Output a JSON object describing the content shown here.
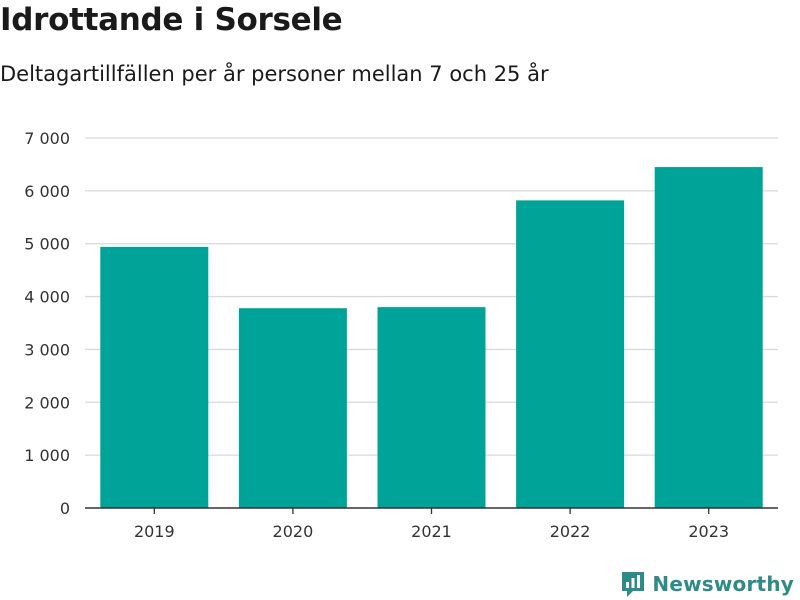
{
  "title": "Idrottande i Sorsele",
  "subtitle": "Deltagartillfällen per år personer mellan 7 och 25 år",
  "brand": "Newsworthy",
  "colors": {
    "bar": "#00a398",
    "grid": "#d9d9d9",
    "axis": "#333333",
    "brand": "#2e8b87"
  },
  "chart_data": {
    "type": "bar",
    "title": "",
    "xlabel": "",
    "ylabel": "",
    "categories": [
      "2019",
      "2020",
      "2021",
      "2022",
      "2023"
    ],
    "values": [
      4940,
      3780,
      3800,
      5820,
      6450
    ],
    "ylim": [
      0,
      7000
    ],
    "yticks": [
      0,
      1000,
      2000,
      3000,
      4000,
      5000,
      6000,
      7000
    ],
    "ytick_labels": [
      "0",
      "1 000",
      "2 000",
      "3 000",
      "4 000",
      "5 000",
      "6 000",
      "7 000"
    ],
    "grid": true,
    "legend": "none"
  }
}
